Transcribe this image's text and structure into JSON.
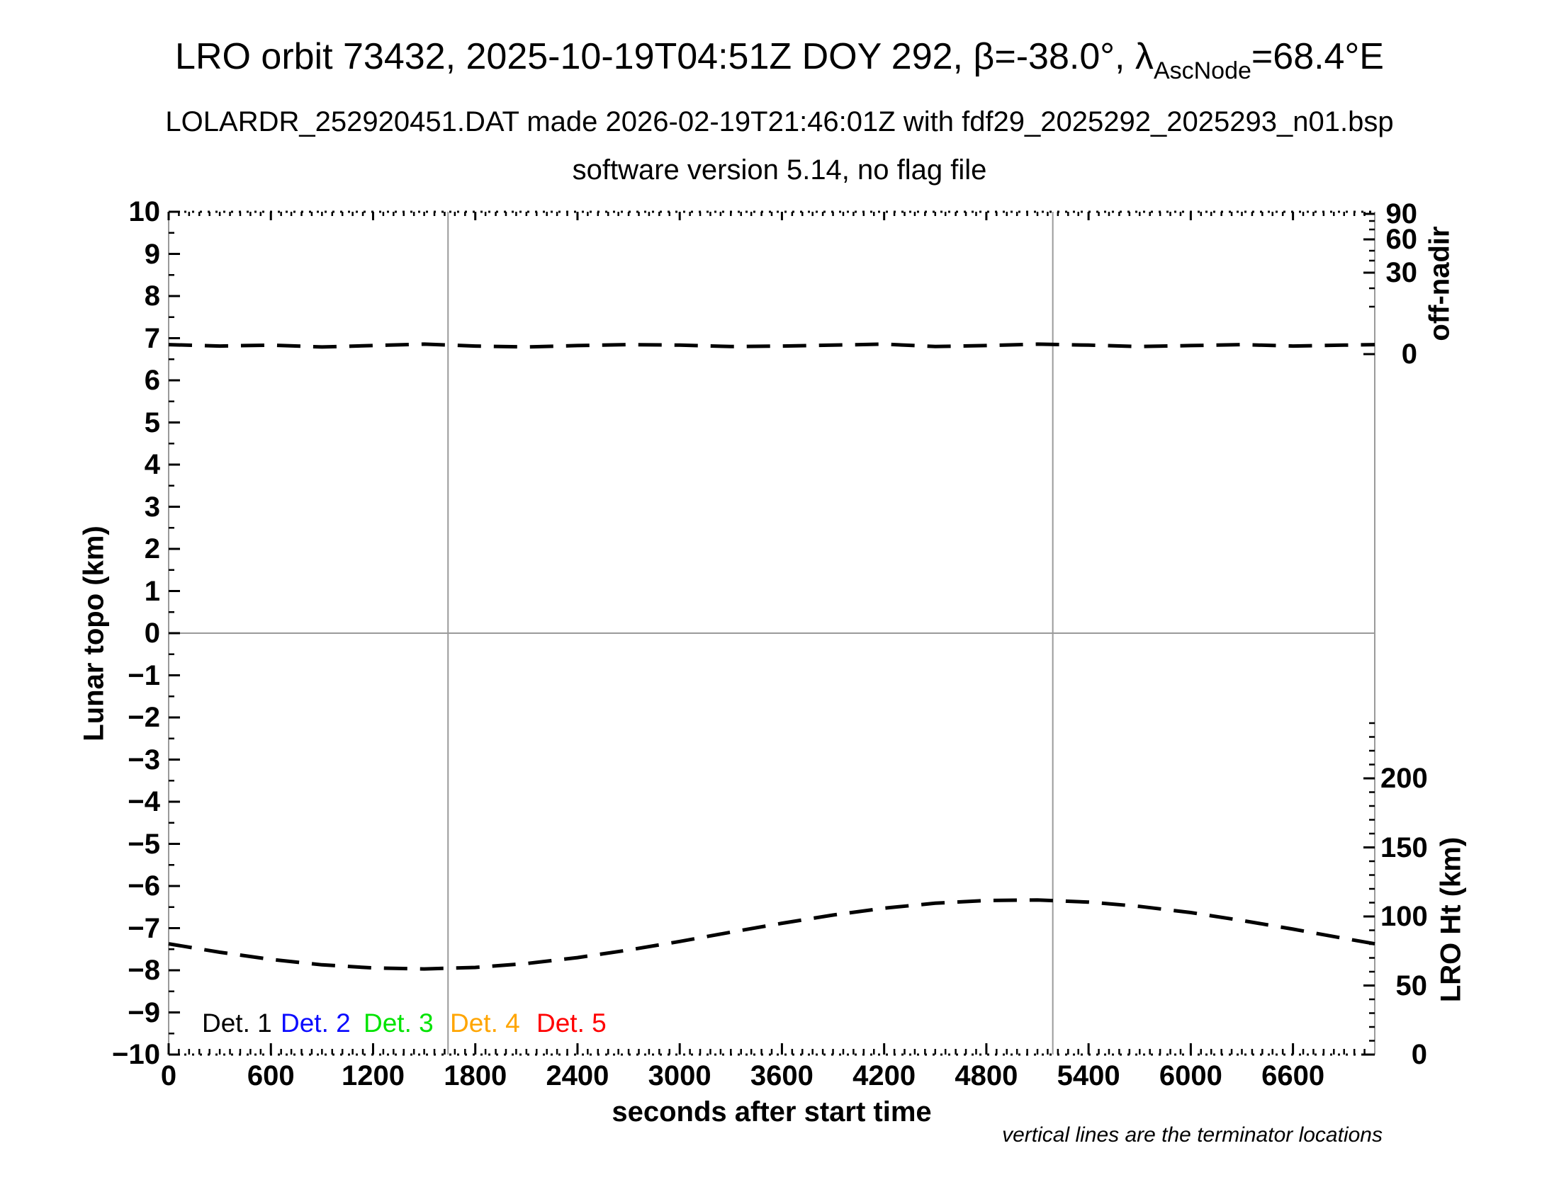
{
  "header": {
    "title_prefix": "LRO orbit 73432, 2025-10-19T04:51Z DOY 292, β=-38.0°, λ",
    "title_subscript": "AscNode",
    "title_suffix": "=68.4°E",
    "subtitle1": "LOLARDR_252920451.DAT made 2026-02-19T21:46:01Z with fdf29_2025292_2025293_n01.bsp",
    "subtitle2": "software version 5.14, no flag file"
  },
  "chart_data": {
    "type": "line",
    "title": "LRO orbit 73432, 2025-10-19T04:51Z DOY 292, β=-38.0°, λAscNode=68.4°E",
    "x_axis": {
      "label": "seconds after start time",
      "min": 0,
      "max": 7080,
      "major_ticks": [
        0,
        600,
        1200,
        1800,
        2400,
        3000,
        3600,
        4200,
        4800,
        5400,
        6000,
        6600
      ],
      "major_tick_labels": [
        "0",
        "600",
        "1200",
        "1800",
        "2400",
        "3000",
        "3600",
        "4200",
        "4800",
        "5400",
        "6000",
        "6600"
      ],
      "minor_tick_step": 60
    },
    "left_axis": {
      "label": "Lunar topo (km)",
      "min": -10,
      "max": 10,
      "major_ticks": [
        10,
        9,
        8,
        7,
        6,
        5,
        4,
        3,
        2,
        1,
        0,
        -1,
        -2,
        -3,
        -4,
        -5,
        -6,
        -7,
        -8,
        -9,
        -10
      ],
      "major_tick_labels": [
        "10",
        "9",
        "8",
        "7",
        "6",
        "5",
        "4",
        "3",
        "2",
        "1",
        "0",
        "−1",
        "−2",
        "−3",
        "−4",
        "−5",
        "−6",
        "−7",
        "−8",
        "−9",
        "−10"
      ],
      "minor_tick_step": 0.5
    },
    "right_axis_offnadir": {
      "label": "off-nadir",
      "scale": "nonlinear",
      "major_ticks": [
        90,
        60,
        30,
        0
      ],
      "major_tick_labels": [
        "90",
        "60",
        "30",
        "0"
      ],
      "minor_ticks": [
        80,
        70,
        50,
        40,
        20,
        10
      ]
    },
    "right_axis_height": {
      "label": "LRO Ht (km)",
      "min": 0,
      "max": 200,
      "major_ticks": [
        200,
        150,
        100,
        50,
        0
      ],
      "major_tick_labels": [
        "200",
        "150",
        "100",
        "50",
        "0"
      ],
      "minor_tick_step": 10,
      "minor_tick_max": 240
    },
    "series": [
      {
        "name": "off-nadir angle",
        "axis": "offnadir",
        "style": "dashed",
        "color": "#000000",
        "t": [
          0,
          300,
          600,
          900,
          1200,
          1500,
          1800,
          2100,
          2400,
          2700,
          3000,
          3300,
          3600,
          3900,
          4200,
          4500,
          4800,
          5100,
          5400,
          5700,
          6000,
          6300,
          6600,
          6900,
          7080
        ],
        "values": [
          2.0,
          1.7,
          1.9,
          1.5,
          1.8,
          2.1,
          1.7,
          1.5,
          1.8,
          2.0,
          1.9,
          1.6,
          1.7,
          1.9,
          2.1,
          1.6,
          1.8,
          2.1,
          1.9,
          1.6,
          1.8,
          2.0,
          1.7,
          1.9,
          2.0
        ]
      },
      {
        "name": "LRO Ht",
        "axis": "height",
        "style": "dashed",
        "color": "#000000",
        "t": [
          0,
          300,
          600,
          900,
          1200,
          1500,
          1800,
          2100,
          2400,
          2700,
          3000,
          3300,
          3600,
          3900,
          4200,
          4500,
          4800,
          5100,
          5400,
          5700,
          6000,
          6300,
          6600,
          6900,
          7080
        ],
        "values": [
          80.2,
          74.1,
          68.9,
          65.0,
          62.7,
          62.0,
          63.1,
          65.9,
          70.2,
          75.7,
          81.9,
          88.6,
          95.1,
          101.0,
          106.0,
          109.6,
          111.6,
          111.9,
          110.4,
          107.3,
          102.8,
          97.1,
          90.8,
          84.1,
          80.2
        ]
      }
    ],
    "terminator_lines_t": [
      1640,
      5190
    ],
    "zero_line_value": 0,
    "legend": [
      {
        "label": "Det. 1",
        "color": "#000000"
      },
      {
        "label": "Det. 2",
        "color": "#0b0bff"
      },
      {
        "label": "Det. 3",
        "color": "#00e300"
      },
      {
        "label": "Det. 4",
        "color": "#ffa500"
      },
      {
        "label": "Det. 5",
        "color": "#ff0000"
      }
    ],
    "footnote": "vertical lines are the terminator locations",
    "colors": {
      "curve": "#000000",
      "grid_line": "#9a9a9a",
      "axis_frame": "#9a9a9a",
      "tick": "#000000"
    }
  }
}
